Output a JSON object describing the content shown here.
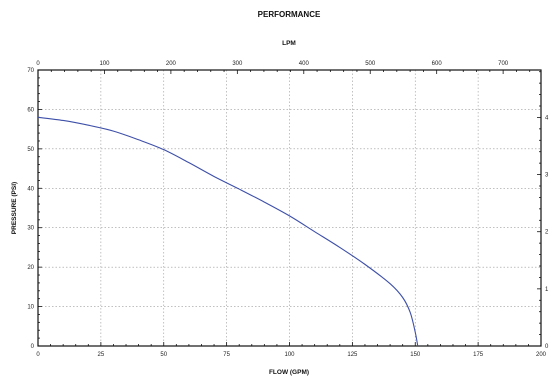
{
  "chart_data": {
    "type": "line",
    "title": "PERFORMANCE",
    "xlabel": "FLOW (GPM)",
    "ylabel": "PRESSURE (PSI)",
    "x2label": "LPM",
    "xlim": [
      0,
      200
    ],
    "ylim": [
      0,
      70
    ],
    "x2lim": [
      0,
      757
    ],
    "y2lim": [
      0,
      4.83
    ],
    "grid": true,
    "x_ticks": [
      "0",
      "25",
      "50",
      "75",
      "100",
      "125",
      "150",
      "175",
      "200"
    ],
    "y_ticks": [
      "0",
      "10",
      "20",
      "30",
      "40",
      "50",
      "60",
      "70"
    ],
    "x2_ticks": [
      "0",
      "100",
      "200",
      "300",
      "400",
      "500",
      "600",
      "700"
    ],
    "y2_ticks": [
      "0",
      "1",
      "2",
      "3",
      "4"
    ],
    "series": [
      {
        "color": "#3d4fa8",
        "x": [
          0,
          10,
          20,
          30,
          40,
          50,
          60,
          70,
          80,
          90,
          100,
          110,
          120,
          130,
          140,
          145,
          148,
          150,
          151
        ],
        "y": [
          58,
          57.2,
          56,
          54.5,
          52.3,
          49.8,
          46.5,
          43,
          39.8,
          36.5,
          33,
          29,
          25,
          20.7,
          15.8,
          12.3,
          8.5,
          3.5,
          0
        ]
      }
    ]
  }
}
